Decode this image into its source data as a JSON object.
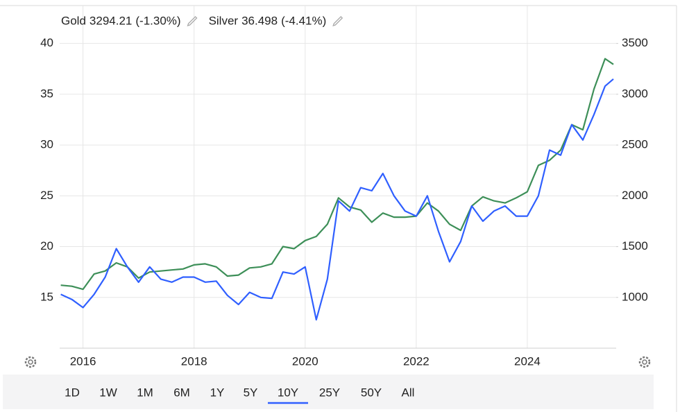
{
  "chart_data": {
    "type": "line",
    "x": [
      2015.6,
      2015.8,
      2016.0,
      2016.2,
      2016.4,
      2016.6,
      2016.8,
      2017.0,
      2017.2,
      2017.4,
      2017.6,
      2017.8,
      2018.0,
      2018.2,
      2018.4,
      2018.6,
      2018.8,
      2019.0,
      2019.2,
      2019.4,
      2019.6,
      2019.8,
      2020.0,
      2020.2,
      2020.4,
      2020.6,
      2020.8,
      2021.0,
      2021.2,
      2021.4,
      2021.6,
      2021.8,
      2022.0,
      2022.2,
      2022.4,
      2022.6,
      2022.8,
      2023.0,
      2023.2,
      2023.4,
      2023.6,
      2023.8,
      2024.0,
      2024.2,
      2024.4,
      2024.6,
      2024.8,
      2025.0,
      2025.2,
      2025.4,
      2025.55
    ],
    "series": [
      {
        "name": "Gold",
        "last_label": "3294.21",
        "change_label": "(-1.30%)",
        "color": "#3d8f58",
        "axis": "y2",
        "values": [
          1120,
          1110,
          1080,
          1230,
          1260,
          1340,
          1300,
          1190,
          1250,
          1260,
          1270,
          1280,
          1320,
          1330,
          1300,
          1210,
          1220,
          1290,
          1300,
          1330,
          1500,
          1480,
          1560,
          1600,
          1720,
          1980,
          1890,
          1860,
          1740,
          1830,
          1790,
          1790,
          1800,
          1930,
          1850,
          1720,
          1660,
          1900,
          1990,
          1950,
          1930,
          1980,
          2040,
          2300,
          2350,
          2450,
          2700,
          2650,
          3050,
          3350,
          3294
        ]
      },
      {
        "name": "Silver",
        "last_label": "36.498",
        "change_label": "(-4.41%)",
        "color": "#2f5fff",
        "values": [
          15.3,
          14.8,
          14.0,
          15.3,
          17.0,
          19.8,
          18.0,
          16.5,
          18.0,
          16.8,
          16.5,
          17.0,
          17.0,
          16.5,
          16.6,
          15.2,
          14.3,
          15.5,
          15.0,
          14.9,
          17.5,
          17.3,
          18.0,
          12.8,
          16.8,
          24.5,
          23.5,
          25.8,
          25.5,
          27.2,
          25.0,
          23.5,
          23.0,
          25.0,
          21.5,
          18.5,
          20.5,
          24.0,
          22.5,
          23.5,
          24.0,
          23.0,
          23.0,
          25.0,
          29.5,
          29.0,
          32.0,
          30.5,
          33.0,
          35.8,
          36.5
        ]
      }
    ],
    "xlim": [
      2015.58,
      2025.6
    ],
    "xticks": [
      2016,
      2018,
      2020,
      2022,
      2024
    ],
    "ylim": [
      10,
      41
    ],
    "yticks": [
      15,
      20,
      25,
      30,
      35,
      40
    ],
    "y2lim": [
      500,
      3600
    ],
    "y2ticks": [
      1000,
      1500,
      2000,
      2500,
      3000,
      3500
    ],
    "grid": true
  },
  "range_buttons": {
    "labels": [
      "1D",
      "1W",
      "1M",
      "6M",
      "1Y",
      "5Y",
      "10Y",
      "25Y",
      "50Y",
      "All"
    ],
    "active": 6
  }
}
